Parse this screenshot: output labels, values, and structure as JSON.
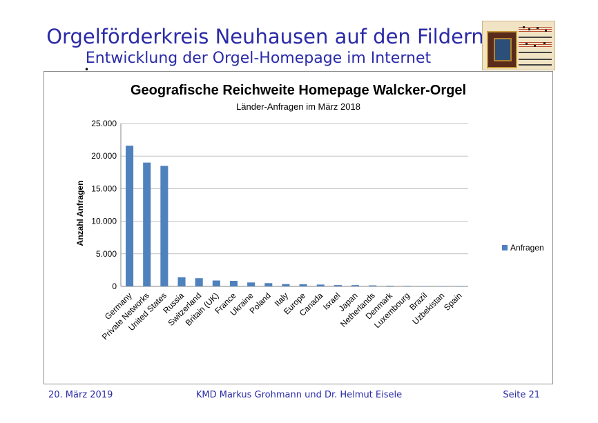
{
  "slide": {
    "title": "Orgelförderkreis Neuhausen auf den Fildern",
    "subtitle": "Entwicklung der Orgel-Homepage im Internet",
    "bullet": "•"
  },
  "footer": {
    "date": "20. März 2019",
    "authors": "KMD Markus Grohmann und Dr. Helmut Eisele",
    "page": "Seite 21"
  },
  "chart_data": {
    "type": "bar",
    "title": "Geografische Reichweite Homepage Walcker-Orgel",
    "subtitle": "Länder-Anfragen im  März 2018",
    "ylabel": "Anzahl Anfragen",
    "xlabel": "",
    "ylim": [
      0,
      25000
    ],
    "yticks": [
      0,
      5000,
      10000,
      15000,
      20000,
      25000
    ],
    "ytick_labels": [
      "0",
      "5.000",
      "10.000",
      "15.000",
      "20.000",
      "25.000"
    ],
    "grid": true,
    "legend_position": "right",
    "bar_color": "#4f81bd",
    "categories": [
      "Germany",
      "Private Networks",
      "United States",
      "Russia",
      "Switzerland",
      "Britain (UK)",
      "France",
      "Ukraine",
      "Poland",
      "Italy",
      "Europe",
      "Canada",
      "Israel",
      "Japan",
      "Netherlands",
      "Denmark",
      "Luxembourg",
      "Brazil",
      "Uzbekistan",
      "Spain"
    ],
    "series": [
      {
        "name": "Anfragen",
        "values": [
          21600,
          19000,
          18500,
          1400,
          1250,
          900,
          850,
          600,
          500,
          350,
          330,
          280,
          200,
          190,
          150,
          100,
          80,
          40,
          20,
          10
        ]
      }
    ]
  }
}
